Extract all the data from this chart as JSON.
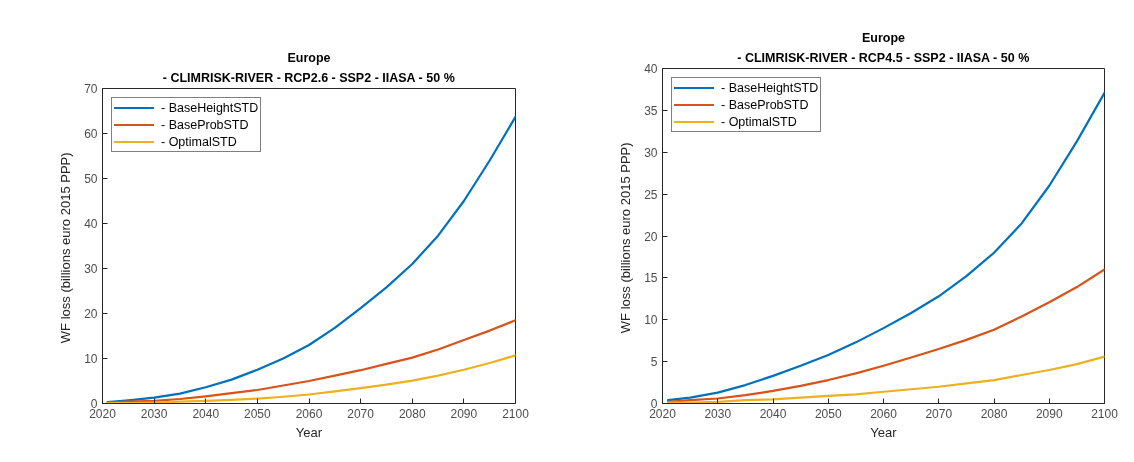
{
  "chart_data": [
    {
      "type": "line",
      "title": "Europe",
      "subtitle": "- CLIMRISK-RIVER - RCP2.6 - SSP2 - IIASA - 50 %",
      "xlabel": "Year",
      "ylabel": "WF loss (billions euro 2015  PPP)",
      "x": [
        2021,
        2025,
        2030,
        2035,
        2040,
        2045,
        2050,
        2055,
        2060,
        2065,
        2070,
        2075,
        2080,
        2085,
        2090,
        2095,
        2100
      ],
      "series": [
        {
          "name": "- BaseHeightSTD",
          "color": "#0072bd",
          "values": [
            0.3,
            0.7,
            1.3,
            2.2,
            3.6,
            5.3,
            7.5,
            10.0,
            13.0,
            16.8,
            21.2,
            25.8,
            31.0,
            37.3,
            45.0,
            54.0,
            63.7
          ]
        },
        {
          "name": "- BaseProbSTD",
          "color": "#d95319",
          "values": [
            0.2,
            0.4,
            0.6,
            1.0,
            1.6,
            2.3,
            3.0,
            4.0,
            5.0,
            6.2,
            7.4,
            8.8,
            10.2,
            12.0,
            14.1,
            16.2,
            18.5
          ]
        },
        {
          "name": "- OptimalSTD",
          "color": "#edb120",
          "values": [
            0.1,
            0.1,
            0.2,
            0.4,
            0.6,
            0.8,
            1.1,
            1.5,
            2.0,
            2.7,
            3.4,
            4.2,
            5.1,
            6.2,
            7.5,
            9.0,
            10.7
          ]
        }
      ],
      "xlim": [
        2020,
        2100
      ],
      "xticks": [
        2020,
        2030,
        2040,
        2050,
        2060,
        2070,
        2080,
        2090,
        2100
      ],
      "ylim": [
        0,
        70
      ],
      "yticks": [
        0,
        10,
        20,
        30,
        40,
        50,
        60,
        70
      ],
      "legend": "top left",
      "grid": false
    },
    {
      "type": "line",
      "title": "Europe",
      "subtitle": "- CLIMRISK-RIVER - RCP4.5 - SSP2 - IIASA - 50 %",
      "xlabel": "Year",
      "ylabel": "WF loss (billions euro 2015  PPP)",
      "x": [
        2021,
        2025,
        2030,
        2035,
        2040,
        2045,
        2050,
        2055,
        2060,
        2065,
        2070,
        2075,
        2080,
        2085,
        2090,
        2095,
        2100
      ],
      "series": [
        {
          "name": "- BaseHeightSTD",
          "color": "#0072bd",
          "values": [
            0.4,
            0.7,
            1.3,
            2.2,
            3.3,
            4.5,
            5.8,
            7.3,
            9.0,
            10.8,
            12.8,
            15.2,
            18.0,
            21.5,
            26.0,
            31.3,
            37.1
          ]
        },
        {
          "name": "- BaseProbSTD",
          "color": "#d95319",
          "values": [
            0.2,
            0.4,
            0.6,
            1.0,
            1.5,
            2.1,
            2.8,
            3.6,
            4.5,
            5.5,
            6.5,
            7.6,
            8.8,
            10.4,
            12.1,
            13.9,
            16.0
          ]
        },
        {
          "name": "- OptimalSTD",
          "color": "#edb120",
          "values": [
            0.1,
            0.1,
            0.2,
            0.4,
            0.5,
            0.7,
            0.9,
            1.1,
            1.4,
            1.7,
            2.0,
            2.4,
            2.8,
            3.4,
            4.0,
            4.7,
            5.6
          ]
        }
      ],
      "xlim": [
        2020,
        2100
      ],
      "xticks": [
        2020,
        2030,
        2040,
        2050,
        2060,
        2070,
        2080,
        2090,
        2100
      ],
      "ylim": [
        0,
        40
      ],
      "yticks": [
        0,
        5,
        10,
        15,
        20,
        25,
        30,
        35,
        40
      ],
      "legend": "top left",
      "grid": false
    }
  ]
}
